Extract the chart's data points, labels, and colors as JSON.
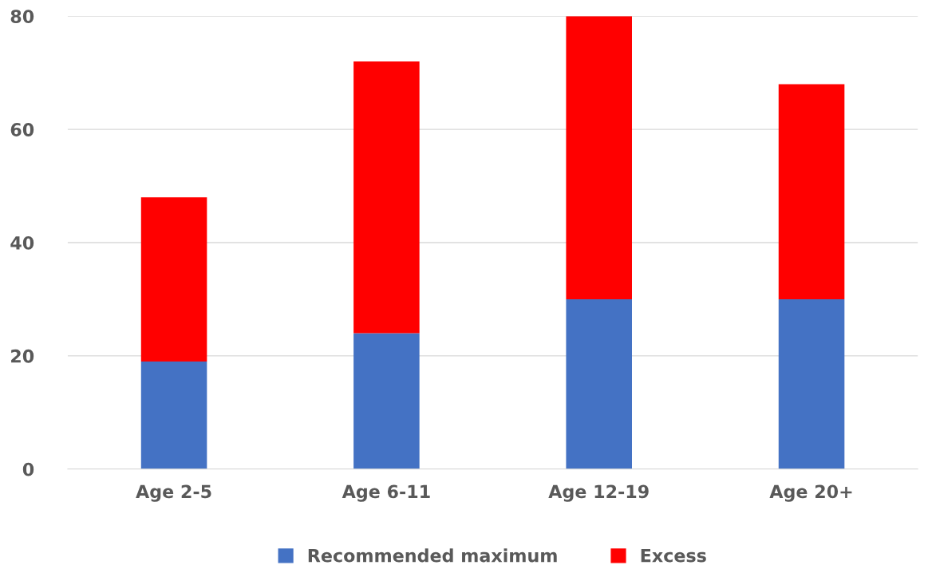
{
  "chart_data": {
    "type": "bar",
    "stacked": true,
    "categories": [
      "Age 2-5",
      "Age 6-11",
      "Age 12-19",
      "Age 20+"
    ],
    "series": [
      {
        "name": "Recommended maximum",
        "color": "#4472c4",
        "values": [
          19,
          24,
          30,
          30
        ]
      },
      {
        "name": "Excess",
        "color": "#ff0000",
        "values": [
          29,
          48,
          50,
          38
        ]
      }
    ],
    "ylim": [
      0,
      80
    ],
    "yticks": [
      0,
      20,
      40,
      60,
      80
    ],
    "grid": "y",
    "legend": "bottom"
  }
}
